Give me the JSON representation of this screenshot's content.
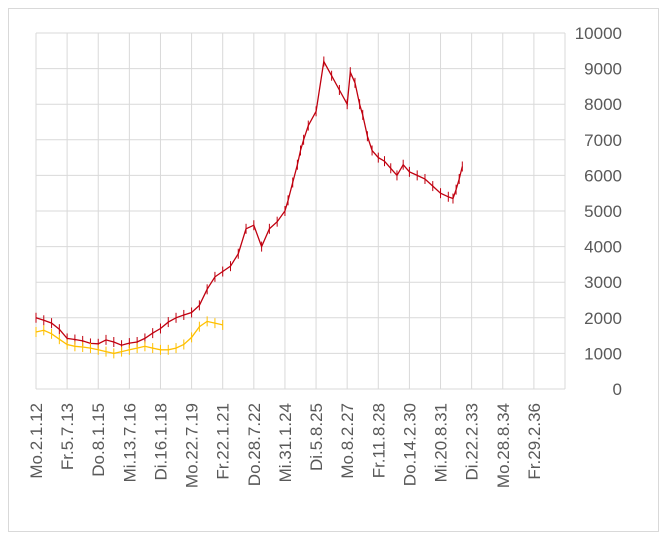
{
  "chart_data": {
    "type": "line",
    "title": "",
    "xlabel": "",
    "ylabel": "",
    "ylim": [
      0,
      10000
    ],
    "yticks": [
      0,
      1000,
      2000,
      3000,
      4000,
      5000,
      6000,
      7000,
      8000,
      9000,
      10000
    ],
    "y_axis_position": "right",
    "grid": "on",
    "legend": "none",
    "categories": [
      "Mo.2.1.12",
      "Fr.5.7.13",
      "Do.8.1.15",
      "Mi.13.7.16",
      "Di.16.1.18",
      "Mo.22.7.19",
      "Fr.22.1.21",
      "Do.28.7.22",
      "Mi.31.1.24",
      "Di.5.8.25",
      "Mo.8.2.27",
      "Fr.11.8.28",
      "Do.14.2.30",
      "Mi.20.8.31",
      "Di.22.2.33",
      "Mo.28.8.34",
      "Fr.29.2.36"
    ],
    "series": [
      {
        "color": "#c0000f",
        "x": [
          0.0,
          0.25,
          0.5,
          0.75,
          1.0,
          1.25,
          1.5,
          1.75,
          2.0,
          2.25,
          2.5,
          2.75,
          3.0,
          3.25,
          3.5,
          3.75,
          4.0,
          4.25,
          4.5,
          4.75,
          5.0,
          5.25,
          5.5,
          5.75,
          6.0,
          6.25,
          6.5,
          6.75,
          7.0,
          7.25,
          7.5,
          7.75,
          8.0,
          8.1,
          8.25,
          8.4,
          8.5,
          8.6,
          8.75,
          9.0,
          9.25,
          9.5,
          9.75,
          10.0,
          10.1,
          10.25,
          10.4,
          10.5,
          10.65,
          10.8,
          11.0,
          11.2,
          11.4,
          11.6,
          11.8,
          12.0,
          12.25,
          12.5,
          12.75,
          13.0,
          13.25,
          13.4,
          13.5,
          13.6,
          13.7
        ],
        "values": [
          2000,
          1930,
          1850,
          1680,
          1420,
          1390,
          1350,
          1280,
          1270,
          1380,
          1320,
          1230,
          1290,
          1320,
          1420,
          1570,
          1700,
          1880,
          2000,
          2080,
          2150,
          2350,
          2800,
          3150,
          3300,
          3450,
          3800,
          4500,
          4600,
          4000,
          4500,
          4700,
          5000,
          5300,
          5800,
          6300,
          6700,
          7000,
          7400,
          7800,
          9200,
          8800,
          8400,
          8000,
          8900,
          8600,
          8000,
          7700,
          7100,
          6700,
          6500,
          6400,
          6200,
          6000,
          6300,
          6100,
          6000,
          5900,
          5700,
          5500,
          5400,
          5350,
          5600,
          5900,
          6250
        ]
      },
      {
        "color": "#ffc000",
        "x": [
          0.0,
          0.25,
          0.5,
          0.75,
          1.0,
          1.25,
          1.5,
          1.75,
          2.0,
          2.25,
          2.5,
          2.75,
          3.0,
          3.25,
          3.5,
          3.75,
          4.0,
          4.25,
          4.5,
          4.75,
          5.0,
          5.25,
          5.5,
          5.75,
          6.0
        ],
        "values": [
          1600,
          1650,
          1550,
          1400,
          1250,
          1200,
          1180,
          1150,
          1100,
          1050,
          1000,
          1050,
          1100,
          1150,
          1200,
          1150,
          1100,
          1100,
          1150,
          1250,
          1450,
          1750,
          1900,
          1850,
          1800
        ]
      }
    ]
  }
}
